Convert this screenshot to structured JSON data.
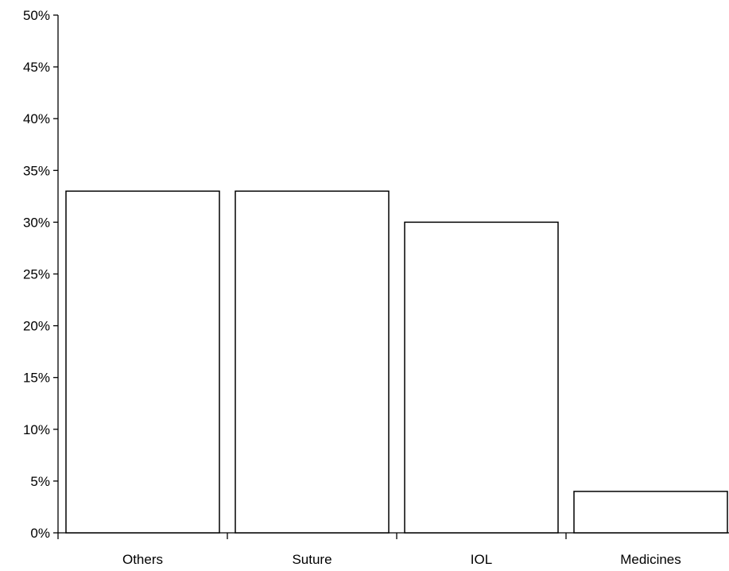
{
  "chart_data": {
    "type": "bar",
    "categories": [
      "Others",
      "Suture",
      "IOL",
      "Medicines"
    ],
    "values": [
      33,
      33,
      30,
      4
    ],
    "y_tick_labels": [
      "0%",
      "5%",
      "10%",
      "15%",
      "20%",
      "25%",
      "30%",
      "35%",
      "40%",
      "45%",
      "50%"
    ],
    "ylim": [
      0,
      50
    ],
    "y_tick_step": 5,
    "grid": false,
    "legend": "none",
    "bar_fill": "#ffffff",
    "bar_stroke": "#000000"
  }
}
